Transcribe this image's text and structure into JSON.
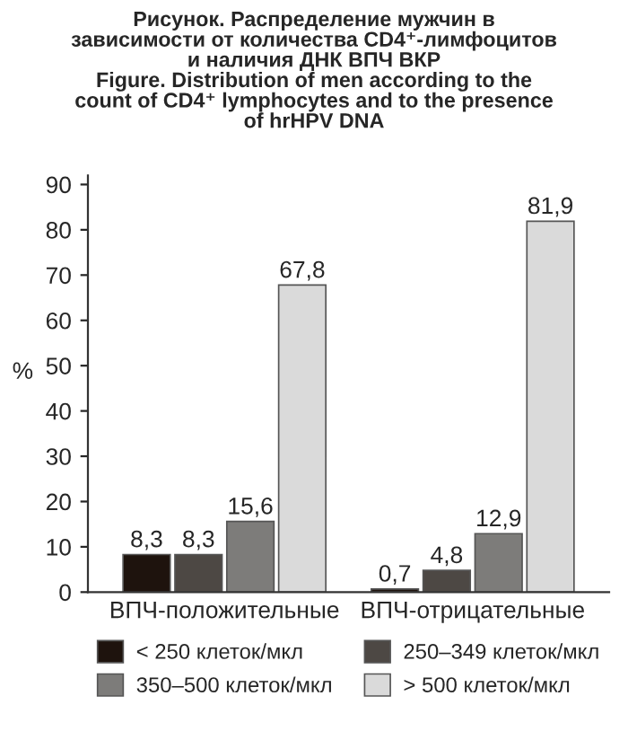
{
  "chart_data": {
    "type": "bar",
    "title": "Рисунок. Распределение мужчин в\nзависимости от количества CD4⁺-лимфоцитов\nи наличия ДНК ВПЧ ВКР\nFigure. Distribution of men according to the\ncount of CD4⁺ lymphocytes and to the presence\nof hrHPV DNA",
    "ylabel": "%",
    "categories": [
      "ВПЧ-положительные",
      "ВПЧ-отрицательные"
    ],
    "series": [
      {
        "name": "< 250 клеток/мкл",
        "color": "#1e130d",
        "values": [
          8.3,
          0.7
        ],
        "value_labels": [
          "8,3",
          "0,7"
        ]
      },
      {
        "name": "250–349 клеток/мкл",
        "color": "#4d4844",
        "values": [
          8.3,
          4.8
        ],
        "value_labels": [
          "8,3",
          "4,8"
        ]
      },
      {
        "name": "350–500 клеток/мкл",
        "color": "#7d7c7a",
        "values": [
          15.6,
          12.9
        ],
        "value_labels": [
          "15,6",
          "12,9"
        ]
      },
      {
        "name": "> 500 клеток/мкл",
        "color": "#dadada",
        "values": [
          67.8,
          81.9
        ],
        "value_labels": [
          "67,8",
          "81,9"
        ]
      }
    ],
    "ylim": [
      0,
      92
    ],
    "yticks": [
      0,
      10,
      20,
      30,
      40,
      50,
      60,
      70,
      80,
      90
    ],
    "grid": false,
    "legend": "bottom"
  }
}
